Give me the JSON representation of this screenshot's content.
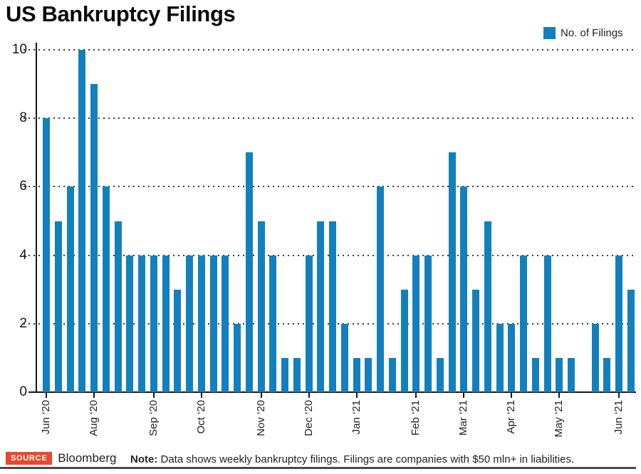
{
  "header": {
    "title": "US Bankruptcy Filings"
  },
  "legend": {
    "label": "No. of Filings",
    "swatch_color": "#1380BE"
  },
  "chart_data": {
    "type": "bar",
    "title": "US Bankruptcy Filings",
    "xlabel": "",
    "ylabel": "",
    "ylim": [
      0,
      10
    ],
    "yticks": [
      0,
      2,
      4,
      6,
      8,
      10
    ],
    "grid": "dotted horizontal gridlines at 2,4,6,8,10",
    "legend_position": "top-right",
    "legend_entries": [
      "No. of Filings"
    ],
    "bar_color": "#1380BE",
    "x_unit": "week",
    "values": [
      8,
      5,
      6,
      10,
      9,
      6,
      5,
      4,
      4,
      4,
      4,
      3,
      4,
      4,
      4,
      4,
      2,
      7,
      5,
      4,
      1,
      1,
      4,
      5,
      5,
      2,
      1,
      1,
      6,
      1,
      3,
      4,
      4,
      1,
      7,
      6,
      3,
      5,
      2,
      2,
      4,
      1,
      4,
      1,
      1,
      0,
      2,
      1,
      4,
      3
    ],
    "xticks": [
      {
        "index": 0,
        "label": "Jun ‘20"
      },
      {
        "index": 4,
        "label": "Aug ‘20"
      },
      {
        "index": 9,
        "label": "Sep ‘20"
      },
      {
        "index": 13,
        "label": "Oct ‘20"
      },
      {
        "index": 18,
        "label": "Nov ‘20"
      },
      {
        "index": 22,
        "label": "Dec ‘20"
      },
      {
        "index": 26,
        "label": "Jan ‘21"
      },
      {
        "index": 31,
        "label": "Feb ‘21"
      },
      {
        "index": 35,
        "label": "Mar ‘21"
      },
      {
        "index": 39,
        "label": "Apr ‘21"
      },
      {
        "index": 43,
        "label": "May ‘21"
      },
      {
        "index": 48,
        "label": "Jun ‘21"
      }
    ]
  },
  "footer": {
    "source_label": "SOURCE",
    "source_name": "Bloomberg",
    "source_badge_color": "#E8492D",
    "note_label": "Note:",
    "note_text": "Data shows weekly bankruptcy filings. Filings are companies with $50 mln+ in liabilities."
  },
  "colors": {
    "bar": "#1380BE",
    "text": "#231f20",
    "rule": "#4A4A4A",
    "badge": "#E8492D"
  }
}
